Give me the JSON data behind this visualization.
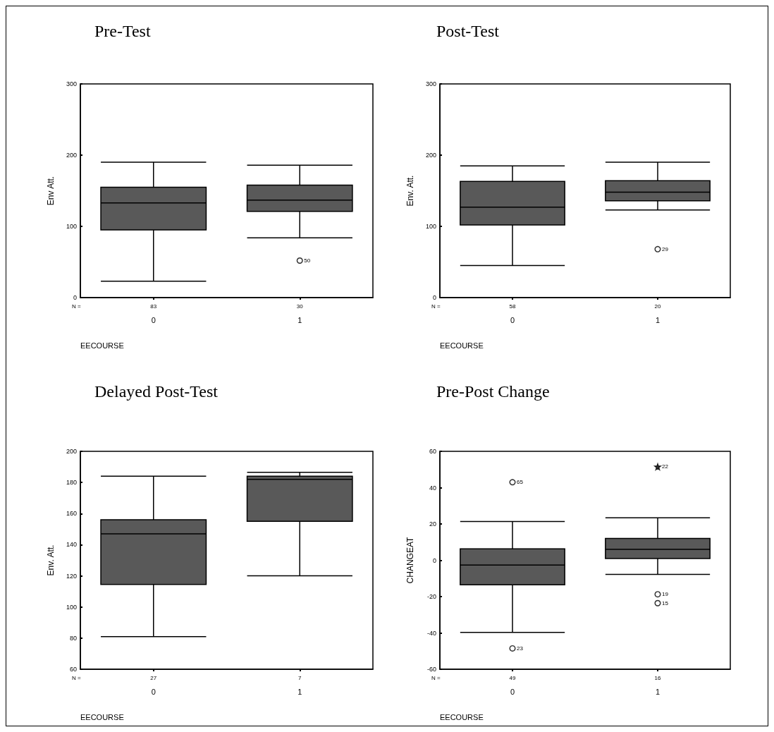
{
  "chart_data": [
    {
      "type": "box",
      "title": "Pre-Test",
      "xlabel": "EECOURSE",
      "ylabel": "Env Att.",
      "categories": [
        "0",
        "1"
      ],
      "ylim": [
        0,
        300
      ],
      "yticks": [
        0,
        100,
        200,
        300
      ],
      "series": [
        {
          "type": "box",
          "color": "#595959",
          "boxes": [
            {
              "low": 23,
              "q1": 95,
              "median": 133,
              "q3": 155,
              "high": 190
            },
            {
              "low": 84,
              "q1": 121,
              "median": 137,
              "q3": 158,
              "high": 186
            }
          ]
        },
        {
          "type": "scatter",
          "marker": "circle",
          "color": "#000000",
          "x": [
            "1"
          ],
          "values": [
            52
          ]
        }
      ],
      "annotations": [
        "N =",
        "83",
        "30",
        {
          "text": "50",
          "x": "1",
          "y": 52
        }
      ]
    },
    {
      "type": "box",
      "title": "Post-Test",
      "xlabel": "EECOURSE",
      "ylabel": "Env. Att.",
      "categories": [
        "0",
        "1"
      ],
      "ylim": [
        0,
        300
      ],
      "yticks": [
        0,
        100,
        200,
        300
      ],
      "series": [
        {
          "type": "box",
          "color": "#595959",
          "boxes": [
            {
              "low": 45,
              "q1": 102,
              "median": 127,
              "q3": 163,
              "high": 185
            },
            {
              "low": 123,
              "q1": 136,
              "median": 148,
              "q3": 164,
              "high": 190
            }
          ]
        },
        {
          "type": "scatter",
          "marker": "circle",
          "color": "#000000",
          "x": [
            "1"
          ],
          "values": [
            68
          ]
        }
      ],
      "annotations": [
        "N =",
        "58",
        "20",
        {
          "text": "29",
          "x": "1",
          "y": 68
        }
      ]
    },
    {
      "type": "box",
      "title": "Delayed Post-Test",
      "xlabel": "EECOURSE",
      "ylabel": "Env. Att.",
      "categories": [
        "0",
        "1"
      ],
      "ylim": [
        60,
        200
      ],
      "yticks": [
        60,
        80,
        100,
        120,
        140,
        160,
        180,
        200
      ],
      "series": [
        {
          "type": "box",
          "color": "#595959",
          "boxes": [
            {
              "low": 81,
              "q1": 114.5,
              "median": 147,
              "q3": 156,
              "high": 184
            },
            {
              "low": 120,
              "q1": 155,
              "median": 182,
              "q3": 184,
              "high": 186.5
            }
          ]
        }
      ],
      "annotations": [
        "N =",
        "27",
        "7"
      ]
    },
    {
      "type": "box",
      "title": "Pre-Post Change",
      "xlabel": "EECOURSE",
      "ylabel": "CHANGEAT",
      "categories": [
        "0",
        "1"
      ],
      "ylim": [
        -60,
        60
      ],
      "yticks": [
        -60,
        -40,
        -20,
        0,
        20,
        40,
        60
      ],
      "series": [
        {
          "type": "box",
          "color": "#595959",
          "boxes": [
            {
              "low": -39.7,
              "q1": -13.5,
              "median": -2.6,
              "q3": 6.3,
              "high": 21.4
            },
            {
              "low": -7.8,
              "q1": 1,
              "median": 6,
              "q3": 12,
              "high": 23.4
            }
          ]
        },
        {
          "type": "scatter",
          "marker": "circle",
          "color": "#000000",
          "x": [
            "0",
            "0",
            "1",
            "1"
          ],
          "values": [
            43,
            -48.5,
            -18.7,
            -23.6
          ]
        },
        {
          "type": "scatter",
          "marker": "star",
          "color": "#000000",
          "x": [
            "1"
          ],
          "values": [
            51.5
          ]
        }
      ],
      "annotations": [
        "N =",
        "49",
        "16",
        {
          "text": "65",
          "x": "0",
          "y": 43
        },
        {
          "text": "23",
          "x": "0",
          "y": -48.5
        },
        {
          "text": "19",
          "x": "1",
          "y": -18.7
        },
        {
          "text": "15",
          "x": "1",
          "y": -23.6
        },
        {
          "text": "22",
          "x": "1",
          "y": 51.5
        }
      ]
    }
  ]
}
